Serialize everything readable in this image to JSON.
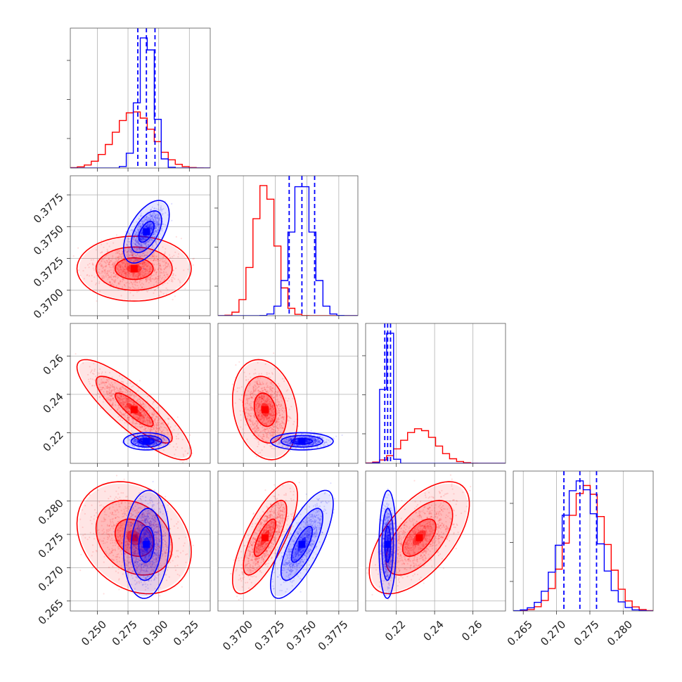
{
  "colors": {
    "series_a": "#ff0000",
    "series_b": "#0000ff",
    "grid": "#b0b0b0"
  },
  "chart_data": {
    "type": "corner",
    "title": "",
    "grid": true,
    "legend": "none",
    "parameters": [
      {
        "range": [
          0.228,
          0.342
        ],
        "ticks": [
          "0.250",
          "0.275",
          "0.300",
          "0.325"
        ],
        "tick_values": [
          0.25,
          0.275,
          0.3,
          0.325
        ]
      },
      {
        "range": [
          0.368,
          0.379
        ],
        "ticks": [
          "0.3700",
          "0.3725",
          "0.3750",
          "0.3775"
        ],
        "tick_values": [
          0.37,
          0.3725,
          0.375,
          0.3775
        ]
      },
      {
        "range": [
          0.204,
          0.277
        ],
        "ticks": [
          "0.22",
          "0.24",
          "0.26"
        ],
        "tick_values": [
          0.22,
          0.24,
          0.26
        ]
      },
      {
        "range": [
          0.2635,
          0.2845
        ],
        "ticks": [
          "0.265",
          "0.270",
          "0.275",
          "0.280"
        ],
        "tick_values": [
          0.265,
          0.27,
          0.275,
          0.28
        ]
      }
    ],
    "series": [
      {
        "name": "",
        "color": "#ff0000",
        "mean": [
          0.28,
          0.3717,
          0.232,
          0.2745
        ],
        "sd": [
          0.0155,
          0.00085,
          0.0087,
          0.0028
        ],
        "correlation": [
          [
            1.0,
            0.0,
            -0.85,
            -0.25
          ],
          [
            0.0,
            1.0,
            -0.2,
            0.75
          ],
          [
            -0.85,
            -0.2,
            1.0,
            0.6
          ],
          [
            -0.25,
            0.75,
            0.6,
            1.0
          ]
        ]
      },
      {
        "name": "",
        "color": "#0000ff",
        "mean": [
          0.29,
          0.3746,
          0.2155,
          0.2735
        ],
        "sd": [
          0.0062,
          0.00082,
          0.0015,
          0.0027
        ],
        "correlation": [
          [
            1.0,
            0.55,
            0.0,
            0.1
          ],
          [
            0.55,
            1.0,
            0.0,
            0.75
          ],
          [
            0.0,
            0.0,
            1.0,
            0.05
          ],
          [
            0.1,
            0.75,
            0.05,
            1.0
          ]
        ]
      }
    ],
    "quantile_lines": {
      "color": "#0000ff",
      "style": "dashed",
      "values": [
        [
          0.283,
          0.29,
          0.297
        ],
        [
          0.3736,
          0.3746,
          0.3756
        ],
        [
          0.214,
          0.2155,
          0.217
        ],
        [
          0.2711,
          0.2735,
          0.276
        ]
      ]
    },
    "contour_levels": [
      0.393,
      0.865,
      0.989
    ]
  }
}
